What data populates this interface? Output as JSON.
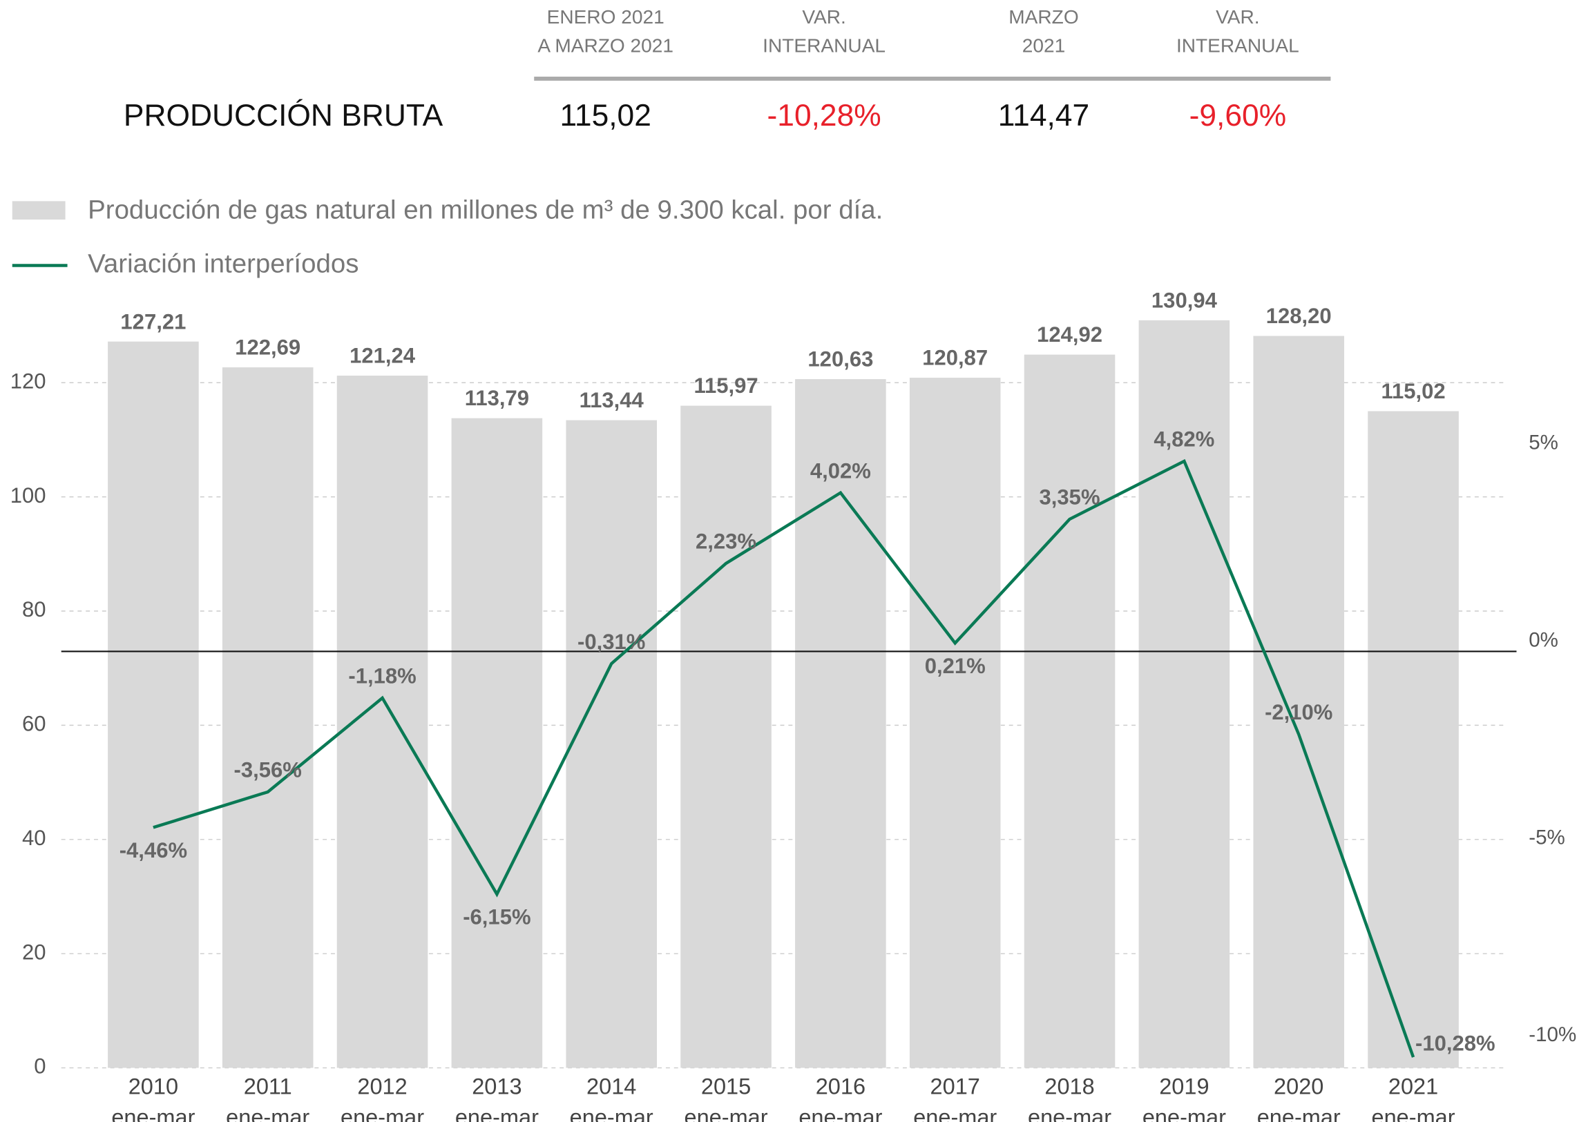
{
  "header": {
    "columns": [
      [
        "ENERO 2021",
        "A MARZO 2021"
      ],
      [
        "VAR.",
        "INTERANUAL"
      ],
      [
        "MARZO",
        "2021"
      ],
      [
        "VAR.",
        "INTERANUAL"
      ]
    ],
    "row_label": "PRODUCCIÓN BRUTA",
    "row_values": [
      "115,02",
      "-10,28%",
      "114,47",
      "-9,60%"
    ],
    "negative_color": "#e8202a",
    "text_color": "#111111"
  },
  "chart_data": {
    "type": "bar_line",
    "categories": [
      "2010",
      "2011",
      "2012",
      "2013",
      "2014",
      "2015",
      "2016",
      "2017",
      "2018",
      "2019",
      "2020",
      "2021"
    ],
    "category_sublabel": "ene-mar",
    "series": [
      {
        "name": "Producción de gas natural en millones de m³ de 9.300 kcal. por día.",
        "type": "bar",
        "color": "#d9d9d9",
        "values": [
          127.21,
          122.69,
          121.24,
          113.79,
          113.44,
          115.97,
          120.63,
          120.87,
          124.92,
          130.94,
          128.2,
          115.02
        ],
        "value_labels": [
          "127,21",
          "122,69",
          "121,24",
          "113,79",
          "113,44",
          "115,97",
          "120,63",
          "120,87",
          "124,92",
          "130,94",
          "128,20",
          "115,02"
        ]
      },
      {
        "name": "Variación interperíodos",
        "type": "line",
        "axis": "y2",
        "color": "#0a7a55",
        "values": [
          -4.46,
          -3.56,
          -1.18,
          -6.15,
          -0.31,
          2.23,
          4.02,
          0.21,
          3.35,
          4.82,
          -2.1,
          -10.28
        ],
        "value_labels": [
          "-4,46%",
          "-3,56%",
          "-1,18%",
          "-6,15%",
          "-0,31%",
          "2,23%",
          "4,02%",
          "0,21%",
          "3,35%",
          "4,82%",
          "-2,10%",
          "-10,28%"
        ]
      }
    ],
    "ylim": [
      0,
      140
    ],
    "yticks": [
      0,
      20,
      40,
      60,
      80,
      100,
      120
    ],
    "y2lim": [
      -10.55,
      9.7
    ],
    "y2ticks": [
      {
        "value": 5,
        "label": "5%"
      },
      {
        "value": 0,
        "label": "0%"
      },
      {
        "value": -5,
        "label": "-5%"
      },
      {
        "value": -10,
        "label": "-10%"
      }
    ],
    "grid": true
  }
}
